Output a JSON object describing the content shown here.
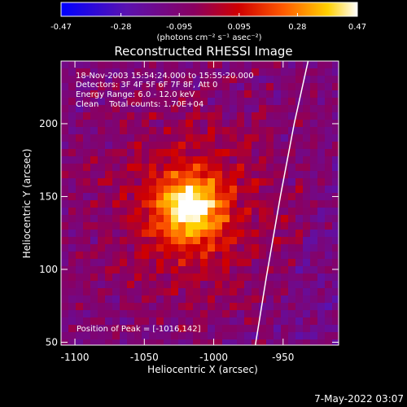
{
  "chart_data": {
    "type": "heatmap",
    "title": "Reconstructed RHESSI Image",
    "xlabel": "Heliocentric X (arcsec)",
    "ylabel": "Heliocentric Y (arcsec)",
    "xlim": [
      -1110,
      -910
    ],
    "ylim": [
      48,
      243
    ],
    "xticks": [
      -1100,
      -1050,
      -1000,
      -950
    ],
    "xtick_labels": [
      "-1100",
      "-1050",
      "-1000",
      "-950"
    ],
    "yticks": [
      50,
      100,
      150,
      200
    ],
    "ytick_labels": [
      "50",
      "100",
      "150",
      "200"
    ],
    "colorbar": {
      "min": -0.47,
      "max": 0.47,
      "ticks": [
        -0.47,
        -0.28,
        -0.095,
        0.095,
        0.28,
        0.47
      ],
      "tick_labels": [
        "-0.47",
        "-0.28",
        "-0.095",
        "0.095",
        "0.28",
        "0.47"
      ],
      "label": "(photons cm⁻² s⁻¹ asec⁻²)"
    },
    "annotations": [
      "18-Nov-2003 15:54:24.000 to 15:55:20.000",
      "Detectors: 3F 4F 5F 6F 7F 8F, Att 0",
      "Energy Range: 6.0 - 12.0 keV",
      "Clean    Total counts: 1.70E+04"
    ],
    "peak_label": "Position of Peak = [-1016,142]",
    "peak": [
      -1016,
      142
    ],
    "limb_points": [
      [
        -970,
        48
      ],
      [
        -962,
        95
      ],
      [
        -952,
        150
      ],
      [
        -942,
        200
      ],
      [
        -932,
        243
      ]
    ],
    "grid": false
  },
  "footer": {
    "timestamp": "7-May-2022 03:07"
  },
  "colors": {
    "background": "#000000",
    "foreground": "#ffffff",
    "colormap": [
      "#0000ff",
      "#6010a0",
      "#a00000",
      "#ff4000",
      "#ffb000",
      "#ffffff"
    ]
  }
}
